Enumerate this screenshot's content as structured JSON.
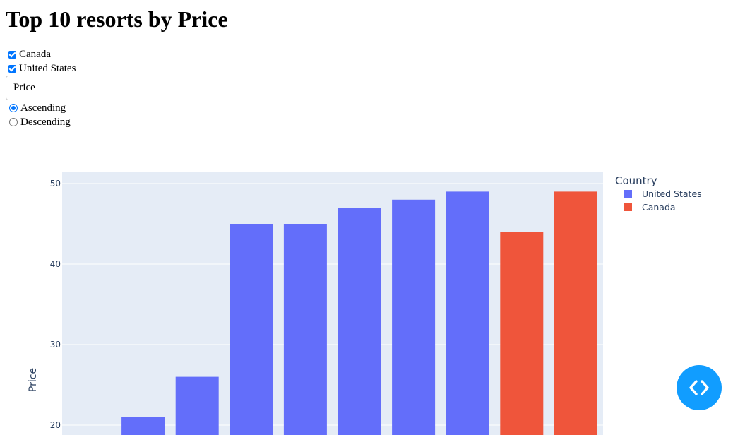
{
  "page": {
    "title": "Top 10 resorts by Price"
  },
  "filters": {
    "countries": [
      {
        "label": "Canada",
        "checked": true
      },
      {
        "label": "United States",
        "checked": true
      }
    ],
    "sort_field": {
      "value": "Price"
    },
    "order": [
      {
        "label": "Ascending",
        "selected": true
      },
      {
        "label": "Descending",
        "selected": false
      }
    ]
  },
  "debug_button": {
    "icon": "code-brackets-icon"
  },
  "chart_data": {
    "type": "bar",
    "ylabel": "Price",
    "yticks": [
      20,
      30,
      40,
      50
    ],
    "ylim": [
      18,
      51.5
    ],
    "legend": {
      "title": "Country",
      "placement": "top-right",
      "entries": [
        {
          "name": "United States",
          "color": "#636efa"
        },
        {
          "name": "Canada",
          "color": "#ef553b"
        }
      ]
    },
    "series": [
      {
        "name": "United States",
        "color": "#636efa",
        "values": [
          21,
          26,
          45,
          45,
          47,
          48,
          49
        ]
      },
      {
        "name": "Canada",
        "color": "#ef553b",
        "values": [
          44,
          49
        ]
      }
    ],
    "grid": true,
    "plot_background": "#e5ecf6"
  }
}
